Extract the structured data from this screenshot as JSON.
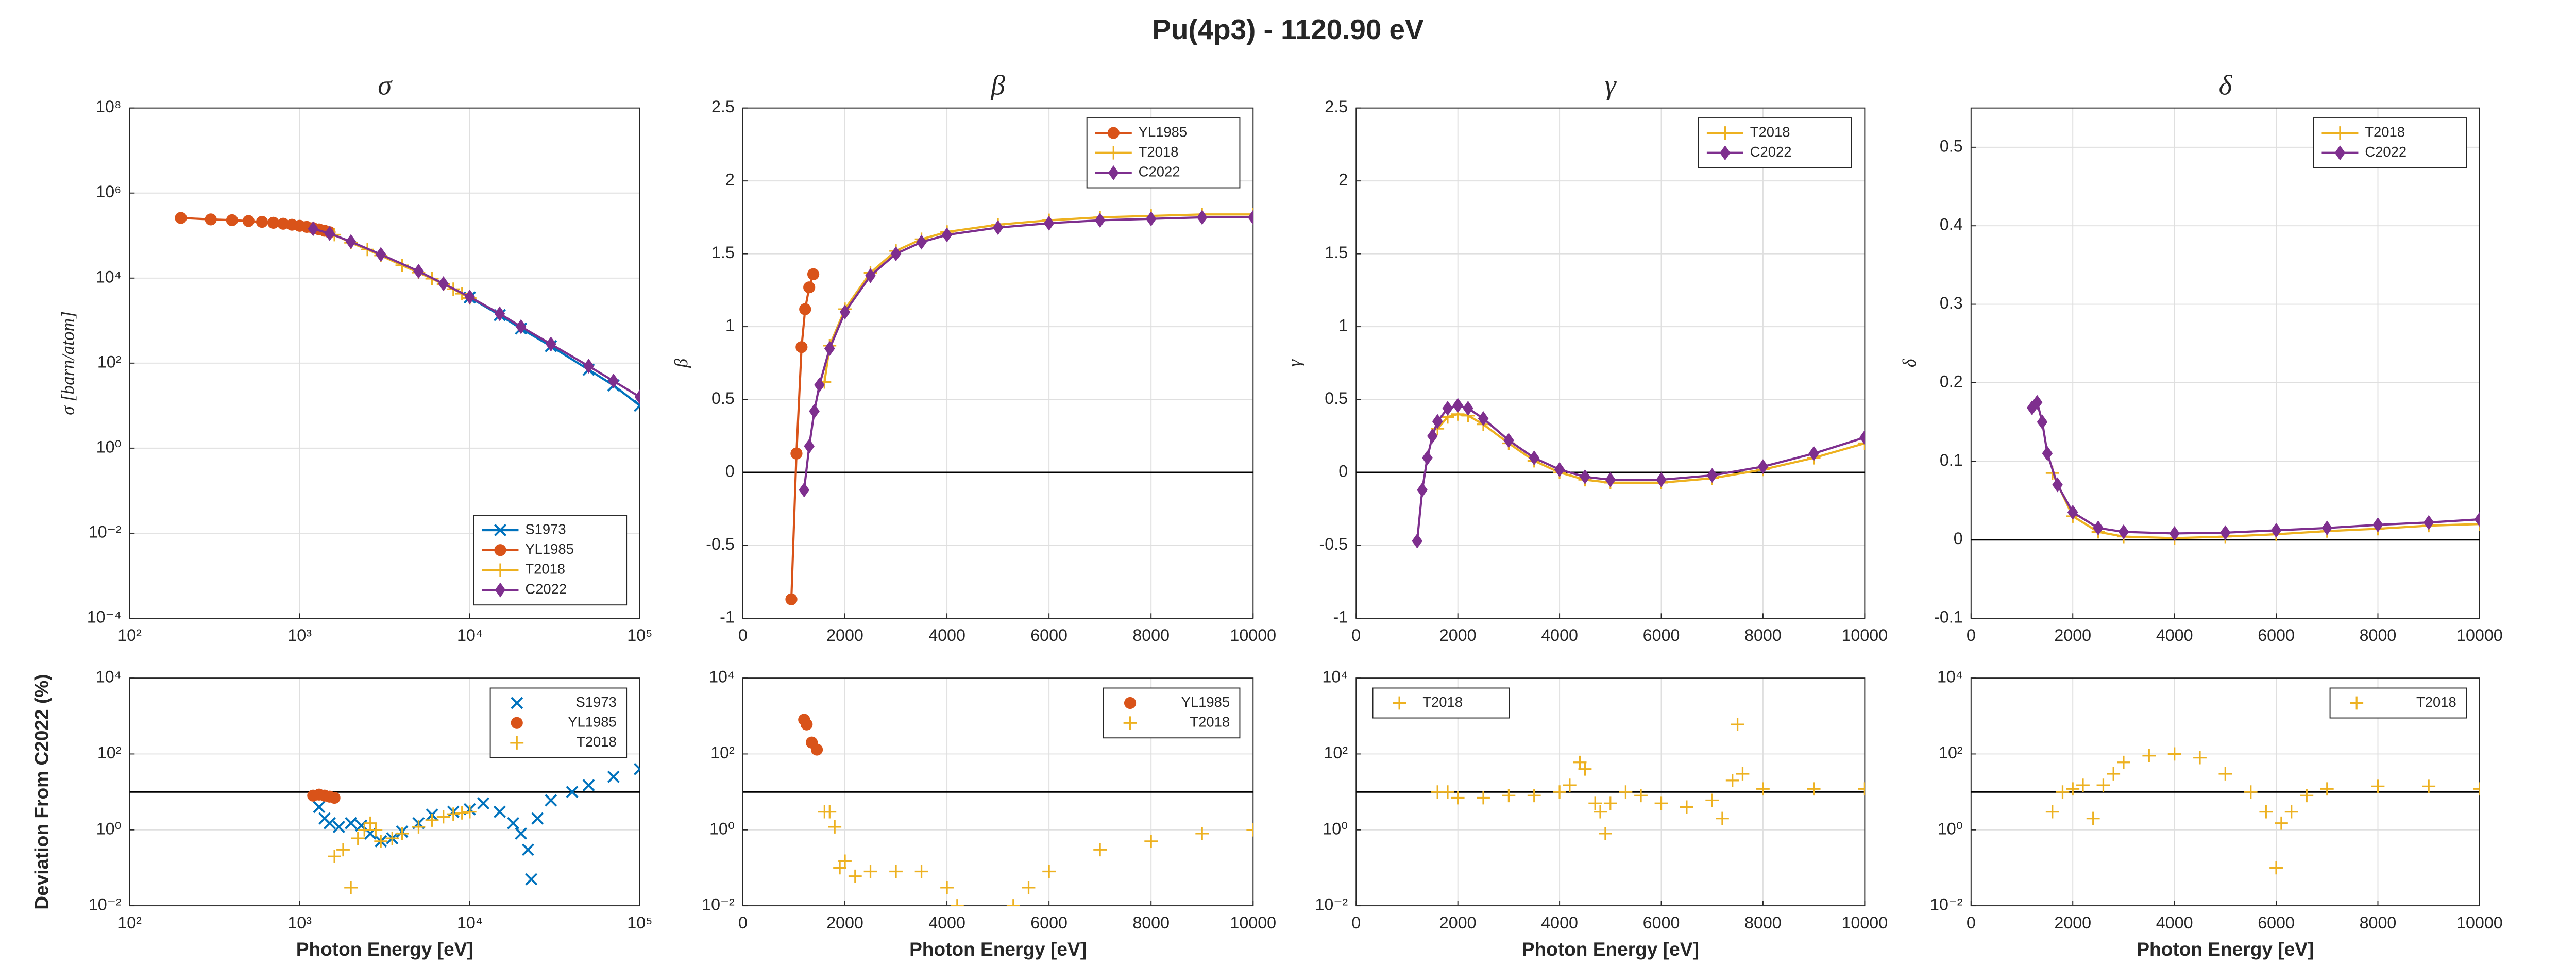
{
  "title": "Pu(4p3) - 1120.90 eV",
  "chart_data": [
    {
      "type": "line",
      "title": "σ",
      "y_label": "σ [barn/atom]",
      "xscale": "log",
      "yscale": "log",
      "grid": true,
      "legend": "lower right",
      "xlim": [
        100,
        100000
      ],
      "xticks": [
        {
          "value": 100,
          "label": "10²"
        },
        {
          "value": 1000,
          "label": "10³"
        },
        {
          "value": 10000,
          "label": "10⁴"
        },
        {
          "value": 100000,
          "label": "10⁵"
        }
      ],
      "ylim": [
        0.0001,
        100000000
      ],
      "yticks": [
        {
          "value": 0.0001,
          "label": "10⁻⁴"
        },
        {
          "value": 0.01,
          "label": "10⁻²"
        },
        {
          "value": 1,
          "label": "10⁰"
        },
        {
          "value": 100,
          "label": "10²"
        },
        {
          "value": 10000,
          "label": "10⁴"
        },
        {
          "value": 1000000,
          "label": "10⁶"
        },
        {
          "value": 100000000,
          "label": "10⁸"
        }
      ],
      "series": [
        {
          "name": "S1973",
          "color": "#0072bd",
          "marker": "x",
          "x": [
            10000,
            15000,
            20000,
            30000,
            50000,
            70000,
            100000
          ],
          "values": [
            3500,
            1350,
            650,
            250,
            70,
            30,
            10
          ]
        },
        {
          "name": "YL1985",
          "color": "#d95319",
          "marker": "o",
          "x": [
            200,
            300,
            400,
            500,
            600,
            700,
            800,
            900,
            1000,
            1100,
            1200,
            1300,
            1400,
            1500
          ],
          "values": [
            260000,
            240000,
            230000,
            220000,
            210000,
            200000,
            190000,
            180000,
            170000,
            160000,
            150000,
            140000,
            130000,
            120000
          ]
        },
        {
          "name": "T2018",
          "color": "#edb120",
          "marker": "+",
          "x": [
            1600,
            2000,
            2500,
            3000,
            4000,
            5000,
            6000,
            7000,
            8000,
            9000,
            10000
          ],
          "values": [
            105000,
            68000,
            47000,
            34000,
            20000,
            13500,
            9700,
            7200,
            5500,
            4300,
            3400
          ]
        },
        {
          "name": "C2022",
          "color": "#7e2f8e",
          "marker": "d",
          "x": [
            1200,
            1500,
            2000,
            3000,
            5000,
            7000,
            10000,
            15000,
            20000,
            30000,
            50000,
            70000,
            100000
          ],
          "values": [
            145000,
            112000,
            72000,
            36000,
            14500,
            7400,
            3600,
            1450,
            720,
            280,
            85,
            38,
            16
          ]
        }
      ]
    },
    {
      "type": "line",
      "title": "β",
      "y_label": "β",
      "grid": true,
      "legend": "upper right",
      "hline": 0,
      "xlim": [
        0,
        10000
      ],
      "xticks": [
        0,
        2000,
        4000,
        6000,
        8000,
        10000
      ],
      "ylim": [
        -1,
        2.5
      ],
      "yticks": [
        -1,
        -0.5,
        0,
        0.5,
        1,
        1.5,
        2,
        2.5
      ],
      "series": [
        {
          "name": "YL1985",
          "color": "#d95319",
          "marker": "o",
          "x": [
            950,
            1050,
            1150,
            1220,
            1300,
            1380
          ],
          "values": [
            -0.87,
            0.13,
            0.86,
            1.12,
            1.27,
            1.36
          ]
        },
        {
          "name": "T2018",
          "color": "#edb120",
          "marker": "+",
          "x": [
            1600,
            1700,
            2000,
            2500,
            3000,
            3500,
            4000,
            5000,
            6000,
            7000,
            8000,
            9000,
            10000
          ],
          "values": [
            0.62,
            0.87,
            1.12,
            1.37,
            1.52,
            1.6,
            1.65,
            1.7,
            1.73,
            1.75,
            1.76,
            1.77,
            1.77
          ]
        },
        {
          "name": "C2022",
          "color": "#7e2f8e",
          "marker": "d",
          "x": [
            1200,
            1300,
            1400,
            1500,
            1700,
            2000,
            2500,
            3000,
            3500,
            4000,
            5000,
            6000,
            7000,
            8000,
            9000,
            10000
          ],
          "values": [
            -0.12,
            0.18,
            0.42,
            0.6,
            0.85,
            1.1,
            1.35,
            1.5,
            1.58,
            1.63,
            1.68,
            1.71,
            1.73,
            1.74,
            1.75,
            1.75
          ]
        }
      ]
    },
    {
      "type": "line",
      "title": "γ",
      "y_label": "γ",
      "grid": true,
      "legend": "upper right",
      "hline": 0,
      "xlim": [
        0,
        10000
      ],
      "xticks": [
        0,
        2000,
        4000,
        6000,
        8000,
        10000
      ],
      "ylim": [
        -1,
        2.5
      ],
      "yticks": [
        -1,
        -0.5,
        0,
        0.5,
        1,
        1.5,
        2,
        2.5
      ],
      "series": [
        {
          "name": "T2018",
          "color": "#edb120",
          "marker": "+",
          "x": [
            1600,
            1800,
            2000,
            2200,
            2500,
            3000,
            3500,
            4000,
            4500,
            5000,
            6000,
            7000,
            8000,
            9000,
            10000
          ],
          "values": [
            0.3,
            0.38,
            0.4,
            0.39,
            0.33,
            0.2,
            0.08,
            0,
            -0.05,
            -0.07,
            -0.07,
            -0.04,
            0.02,
            0.1,
            0.2
          ]
        },
        {
          "name": "C2022",
          "color": "#7e2f8e",
          "marker": "d",
          "x": [
            1200,
            1300,
            1400,
            1500,
            1600,
            1800,
            2000,
            2200,
            2500,
            3000,
            3500,
            4000,
            4500,
            5000,
            6000,
            7000,
            8000,
            9000,
            10000
          ],
          "values": [
            -0.47,
            -0.12,
            0.1,
            0.25,
            0.35,
            0.44,
            0.46,
            0.44,
            0.37,
            0.22,
            0.1,
            0.02,
            -0.03,
            -0.05,
            -0.05,
            -0.02,
            0.04,
            0.13,
            0.24
          ]
        }
      ]
    },
    {
      "type": "line",
      "title": "δ",
      "y_label": "δ",
      "grid": true,
      "legend": "upper right",
      "hline": 0,
      "xlim": [
        0,
        10000
      ],
      "xticks": [
        0,
        2000,
        4000,
        6000,
        8000,
        10000
      ],
      "ylim": [
        -0.1,
        0.55
      ],
      "yticks": [
        -0.1,
        0,
        0.1,
        0.2,
        0.3,
        0.4,
        0.5
      ],
      "series": [
        {
          "name": "T2018",
          "color": "#edb120",
          "marker": "+",
          "x": [
            1600,
            2000,
            2500,
            3000,
            4000,
            5000,
            6000,
            7000,
            8000,
            9000,
            10000
          ],
          "values": [
            0.085,
            0.03,
            0.01,
            0.004,
            0.002,
            0.004,
            0.007,
            0.011,
            0.014,
            0.018,
            0.02
          ]
        },
        {
          "name": "C2022",
          "color": "#7e2f8e",
          "marker": "d",
          "x": [
            1200,
            1300,
            1400,
            1500,
            1700,
            2000,
            2500,
            3000,
            4000,
            5000,
            6000,
            7000,
            8000,
            9000,
            10000
          ],
          "values": [
            0.168,
            0.175,
            0.15,
            0.11,
            0.07,
            0.035,
            0.015,
            0.01,
            0.008,
            0.009,
            0.012,
            0.015,
            0.019,
            0.022,
            0.026
          ]
        }
      ]
    },
    {
      "type": "scatter",
      "x_label": "Photon Energy [eV]",
      "y_label": "Deviation From C2022 (%)",
      "xscale": "log",
      "yscale": "log",
      "grid": true,
      "legend": "upper right",
      "hline": 10,
      "xlim": [
        100,
        100000
      ],
      "xticks": [
        {
          "value": 100,
          "label": "10²"
        },
        {
          "value": 1000,
          "label": "10³"
        },
        {
          "value": 10000,
          "label": "10⁴"
        },
        {
          "value": 100000,
          "label": "10⁵"
        }
      ],
      "ylim": [
        0.01,
        10000
      ],
      "yticks": [
        {
          "value": 0.01,
          "label": "10⁻²"
        },
        {
          "value": 1,
          "label": "10⁰"
        },
        {
          "value": 100,
          "label": "10²"
        },
        {
          "value": 10000,
          "label": "10⁴"
        }
      ],
      "series": [
        {
          "name": "S1973",
          "color": "#0072bd",
          "marker": "x",
          "x": [
            1300,
            1400,
            1500,
            1700,
            2000,
            2300,
            2600,
            3000,
            3500,
            4000,
            5000,
            6000,
            8000,
            10000,
            12000,
            15000,
            18000,
            20000,
            22000,
            23000,
            25000,
            30000,
            40000,
            50000,
            70000,
            100000
          ],
          "values": [
            4,
            2,
            1.5,
            1.2,
            1.5,
            1.3,
            0.8,
            0.5,
            0.6,
            0.9,
            1.5,
            2.5,
            3,
            3.5,
            5,
            3,
            1.5,
            0.8,
            0.3,
            0.05,
            2,
            6,
            10,
            15,
            25,
            40
          ]
        },
        {
          "name": "YL1985",
          "color": "#d95319",
          "marker": "o",
          "x": [
            1200,
            1300,
            1400,
            1500,
            1600
          ],
          "values": [
            8,
            8.5,
            8,
            7.5,
            7
          ]
        },
        {
          "name": "T2018",
          "color": "#edb120",
          "marker": "+",
          "x": [
            1600,
            1800,
            2000,
            2200,
            2400,
            2600,
            2800,
            3000,
            3500,
            4000,
            5000,
            6000,
            7000,
            8000,
            9000,
            10000
          ],
          "values": [
            0.2,
            0.3,
            0.03,
            0.6,
            1,
            1.5,
            1,
            0.5,
            0.6,
            0.8,
            1.2,
            1.8,
            2.2,
            2.6,
            2.8,
            3
          ]
        }
      ]
    },
    {
      "type": "scatter",
      "x_label": "Photon Energy [eV]",
      "yscale": "log",
      "grid": true,
      "legend": "upper right",
      "hline": 10,
      "xlim": [
        0,
        10000
      ],
      "xticks": [
        0,
        2000,
        4000,
        6000,
        8000,
        10000
      ],
      "ylim": [
        0.01,
        10000
      ],
      "yticks": [
        {
          "value": 0.01,
          "label": "10⁻²"
        },
        {
          "value": 1,
          "label": "10⁰"
        },
        {
          "value": 100,
          "label": "10²"
        },
        {
          "value": 10000,
          "label": "10⁴"
        }
      ],
      "series": [
        {
          "name": "YL1985",
          "color": "#d95319",
          "marker": "o",
          "x": [
            1200,
            1250,
            1350,
            1450
          ],
          "values": [
            800,
            600,
            200,
            130
          ]
        },
        {
          "name": "T2018",
          "color": "#edb120",
          "marker": "+",
          "x": [
            1600,
            1700,
            1800,
            1900,
            2000,
            2200,
            2500,
            3000,
            3500,
            4000,
            4200,
            5300,
            5600,
            6000,
            7000,
            8000,
            9000,
            10000
          ],
          "values": [
            3,
            3,
            1.2,
            0.1,
            0.15,
            0.06,
            0.08,
            0.08,
            0.08,
            0.03,
            0.01,
            0.01,
            0.03,
            0.08,
            0.3,
            0.5,
            0.8,
            1
          ]
        }
      ]
    },
    {
      "type": "scatter",
      "x_label": "Photon Energy [eV]",
      "yscale": "log",
      "grid": true,
      "legend": "upper left",
      "hline": 10,
      "xlim": [
        0,
        10000
      ],
      "xticks": [
        0,
        2000,
        4000,
        6000,
        8000,
        10000
      ],
      "ylim": [
        0.01,
        10000
      ],
      "yticks": [
        {
          "value": 0.01,
          "label": "10⁻²"
        },
        {
          "value": 1,
          "label": "10⁰"
        },
        {
          "value": 100,
          "label": "10²"
        },
        {
          "value": 10000,
          "label": "10⁴"
        }
      ],
      "series": [
        {
          "name": "T2018",
          "color": "#edb120",
          "marker": "+",
          "x": [
            1600,
            1800,
            2000,
            2500,
            3000,
            3500,
            4000,
            4200,
            4400,
            4500,
            4700,
            4800,
            4900,
            5000,
            5300,
            5600,
            6000,
            6500,
            7000,
            7200,
            7400,
            7500,
            7600,
            8000,
            9000,
            10000
          ],
          "values": [
            10,
            10,
            7,
            7,
            8,
            8,
            10,
            15,
            60,
            40,
            5,
            3,
            0.8,
            5,
            10,
            8,
            5,
            4,
            6,
            2,
            20,
            600,
            30,
            12,
            12,
            12
          ]
        }
      ]
    },
    {
      "type": "scatter",
      "x_label": "Photon Energy [eV]",
      "yscale": "log",
      "grid": true,
      "legend": "upper right",
      "hline": 10,
      "xlim": [
        0,
        10000
      ],
      "xticks": [
        0,
        2000,
        4000,
        6000,
        8000,
        10000
      ],
      "ylim": [
        0.01,
        10000
      ],
      "yticks": [
        {
          "value": 0.01,
          "label": "10⁻²"
        },
        {
          "value": 1,
          "label": "10⁰"
        },
        {
          "value": 100,
          "label": "10²"
        },
        {
          "value": 10000,
          "label": "10⁴"
        }
      ],
      "series": [
        {
          "name": "T2018",
          "color": "#edb120",
          "marker": "+",
          "x": [
            1600,
            1800,
            2000,
            2200,
            2400,
            2600,
            2800,
            3000,
            3500,
            4000,
            4500,
            5000,
            5500,
            5800,
            6000,
            6100,
            6300,
            6600,
            7000,
            8000,
            9000,
            10000
          ],
          "values": [
            3,
            10,
            12,
            15,
            2,
            15,
            30,
            60,
            90,
            100,
            80,
            30,
            10,
            3,
            0.1,
            1.5,
            3,
            8,
            12,
            14,
            14,
            12
          ]
        }
      ]
    }
  ]
}
